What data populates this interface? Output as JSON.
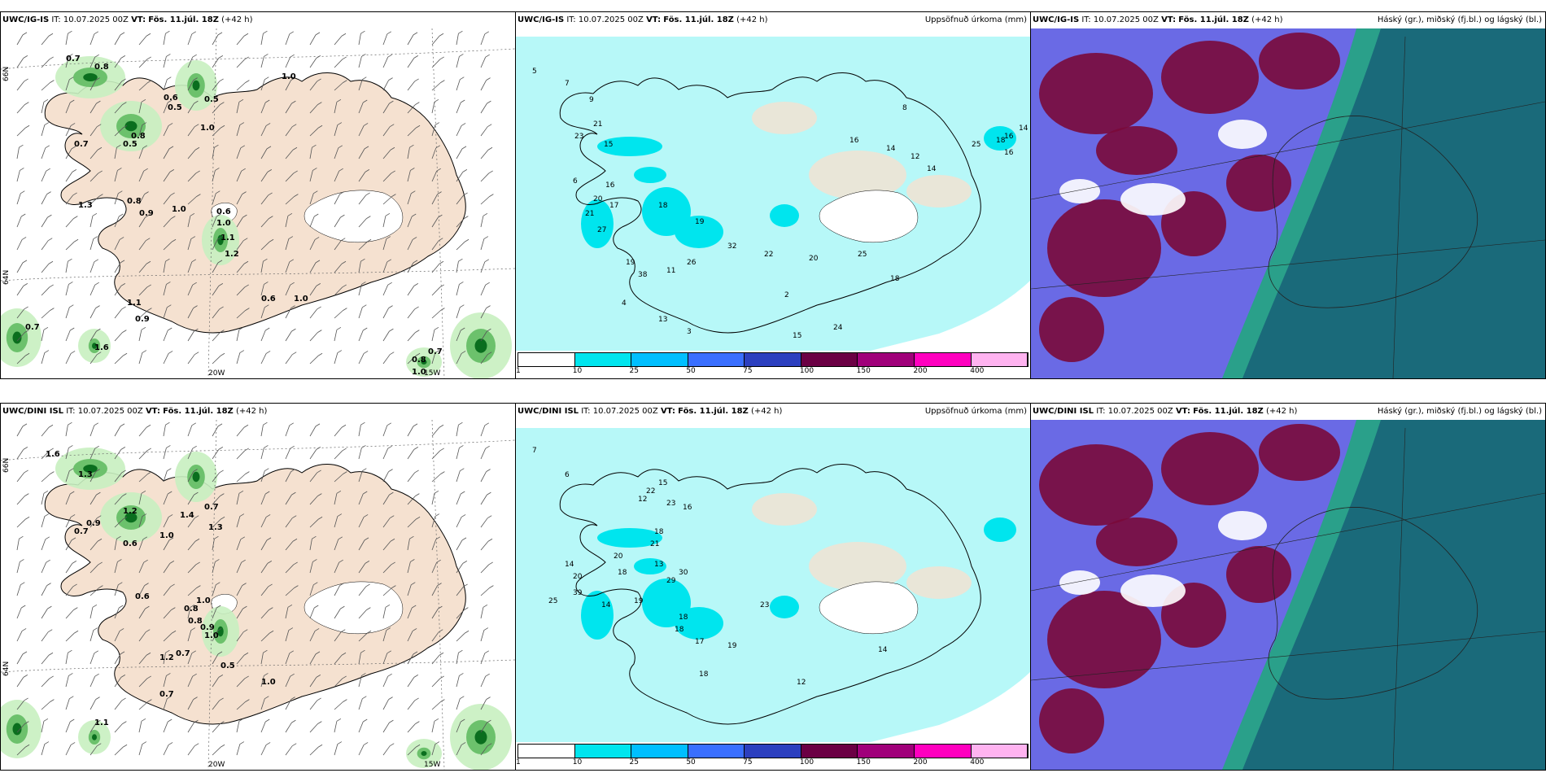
{
  "panels": [
    {
      "model": "UWC/IG-IS",
      "it_label": "IT:",
      "it": "10.07.2025 00Z",
      "vt_label": "VT:",
      "vt": "Fös. 11.júl. 18Z",
      "lead": "(+42 h)",
      "right_title": ""
    },
    {
      "model": "UWC/IG-IS",
      "it_label": "IT:",
      "it": "10.07.2025 00Z",
      "vt_label": "VT:",
      "vt": "Fös. 11.júl. 18Z",
      "lead": "(+42 h)",
      "right_title": "Uppsöfnuð úrkoma (mm)"
    },
    {
      "model": "UWC/IG-IS",
      "it_label": "IT:",
      "it": "10.07.2025 00Z",
      "vt_label": "VT:",
      "vt": "Fös. 11.júl. 18Z",
      "lead": "(+42 h)",
      "right_title": "Háský (gr.), miðský (fj.bl.) og lágský (bl.)"
    },
    {
      "model": "UWC/DINI ISL",
      "it_label": "IT:",
      "it": "10.07.2025 00Z",
      "vt_label": "VT:",
      "vt": "Fös. 11.júl. 18Z",
      "lead": "(+42 h)",
      "right_title": ""
    },
    {
      "model": "UWC/DINI ISL",
      "it_label": "IT:",
      "it": "10.07.2025 00Z",
      "vt_label": "VT:",
      "vt": "Fös. 11.júl. 18Z",
      "lead": "(+42 h)",
      "right_title": "Uppsöfnuð úrkoma (mm)"
    },
    {
      "model": "UWC/DINI ISL",
      "it_label": "IT:",
      "it": "10.07.2025 00Z",
      "vt_label": "VT:",
      "vt": "Fös. 11.júl. 18Z",
      "lead": "(+42 h)",
      "right_title": "Háský (gr.), miðský (fj.bl.) og lágský (bl.)"
    }
  ],
  "axis_labels": {
    "lon_20": "20W",
    "lon_15": "15W",
    "lat_66": "66N",
    "lat_64": "64N"
  },
  "legend": {
    "colors": [
      "#ffffff",
      "#00e5ee",
      "#00bfff",
      "#3a6fff",
      "#2c3fbf",
      "#6b0044",
      "#a0007a",
      "#ff00bf",
      "#ffb3f0"
    ],
    "ticks": [
      "1",
      "10",
      "25",
      "50",
      "75",
      "100",
      "150",
      "200",
      "400"
    ]
  },
  "colors": {
    "land": "#f5e1d0",
    "precip_light": "#b7f8f8",
    "precip_mid": "#00e5ee",
    "shower_light": "#c8f0c0",
    "shower_mid": "#6cc16c",
    "shower_dark": "#0a6e1e",
    "cloud_high": "#7a0a3a",
    "cloud_mid": "#5050e0",
    "cloud_low": "#1a6a7a",
    "cloud_low2": "#2aa08a"
  },
  "map1_values": [
    "0.7",
    "0.8",
    "0.6",
    "0.5",
    "0.5",
    "1.0",
    "0.8",
    "0.5",
    "0.7",
    "1.3",
    "0.8",
    "0.9",
    "1.0",
    "0.6",
    "1.0",
    "1.1",
    "1.2",
    "0.6",
    "1.0",
    "1.1",
    "0.9",
    "0.7",
    "1.6",
    "0.8",
    "1.0",
    "0.7",
    "1.0"
  ],
  "map4_values": [
    "1.6",
    "0.9",
    "0.7",
    "1.2",
    "0.6",
    "1.0",
    "1.4",
    "0.7",
    "1.3",
    "0.8",
    "1.0",
    "0.8",
    "0.9",
    "1.0",
    "0.7",
    "1.2",
    "0.5",
    "0.7",
    "1.0",
    "1.1",
    "1.3",
    "0.6"
  ],
  "map2_values": [
    "5",
    "7",
    "9",
    "15",
    "21",
    "23",
    "16",
    "20",
    "17",
    "21",
    "27",
    "18",
    "19",
    "32",
    "26",
    "11",
    "19",
    "38",
    "22",
    "20",
    "25",
    "18",
    "24",
    "15",
    "13",
    "16",
    "14",
    "12",
    "14",
    "25",
    "16",
    "14",
    "18",
    "16",
    "8",
    "6",
    "4",
    "3",
    "2"
  ],
  "map5_values": [
    "7",
    "6",
    "12",
    "15",
    "22",
    "23",
    "16",
    "18",
    "21",
    "20",
    "14",
    "20",
    "18",
    "14",
    "13",
    "29",
    "30",
    "25",
    "39",
    "19",
    "18",
    "18",
    "17",
    "23",
    "19",
    "18",
    "12",
    "14"
  ]
}
